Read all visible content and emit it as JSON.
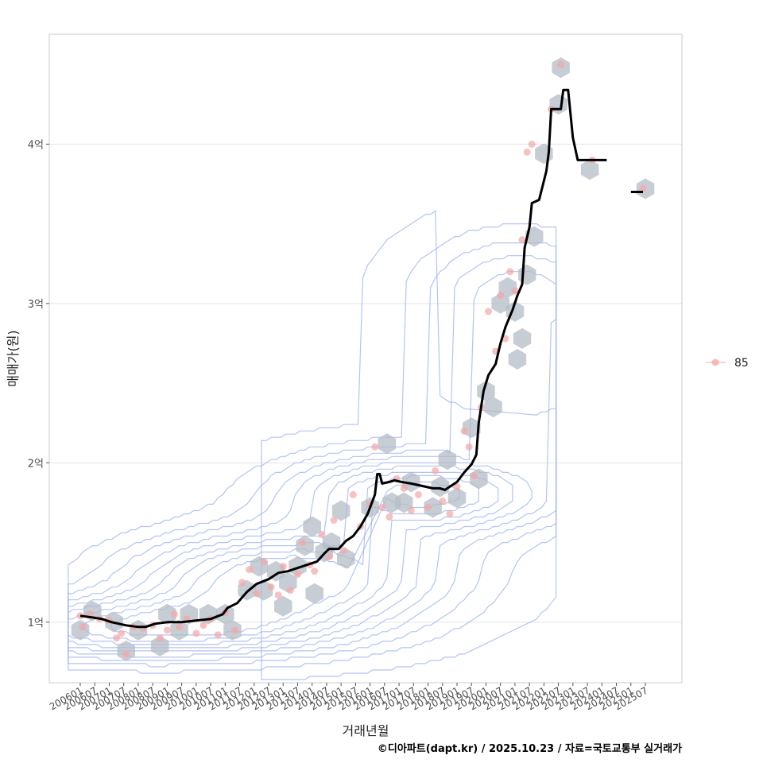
{
  "chart_data": {
    "type": "line",
    "xlabel": "거래년월",
    "ylabel": "매매가(원)",
    "ylim": [
      0.62,
      4.69
    ],
    "y_ticks": [
      {
        "value": 1,
        "label": "1억"
      },
      {
        "value": 2,
        "label": "2억"
      },
      {
        "value": 3,
        "label": "3억"
      },
      {
        "value": 4,
        "label": "4억"
      }
    ],
    "x_range": [
      "2006-01",
      "2025-12"
    ],
    "x_ticks": [
      "200601",
      "200607",
      "200701",
      "200707",
      "200801",
      "200807",
      "200901",
      "200907",
      "201001",
      "201007",
      "201101",
      "201107",
      "201201",
      "201207",
      "201301",
      "201307",
      "201401",
      "201407",
      "201501",
      "201507",
      "201601",
      "201607",
      "201701",
      "201707",
      "201801",
      "201807",
      "201901",
      "201907",
      "202001",
      "202007",
      "202101",
      "202107",
      "202201",
      "202207",
      "202301",
      "202307",
      "202401",
      "202407",
      "202501",
      "202507"
    ],
    "legend": [
      {
        "label": "85",
        "color": "#f4a7a7"
      }
    ],
    "caption": "©디아파트(dapt.kr) / 2025.10.23 / 자료=국토교통부 실거래가",
    "series": [
      {
        "name": "moving-average",
        "color": "#000000",
        "segments": [
          [
            [
              "2006-01",
              1.04
            ],
            [
              "2006-06",
              1.03
            ],
            [
              "2006-10",
              1.02
            ],
            [
              "2007-02",
              1.0
            ],
            [
              "2007-08",
              0.98
            ],
            [
              "2008-01",
              0.97
            ],
            [
              "2008-04",
              0.97
            ],
            [
              "2008-08",
              0.99
            ],
            [
              "2009-01",
              1.0
            ],
            [
              "2009-07",
              1.0
            ],
            [
              "2010-01",
              1.01
            ],
            [
              "2010-07",
              1.02
            ],
            [
              "2010-12",
              1.05
            ],
            [
              "2011-02",
              1.09
            ],
            [
              "2011-06",
              1.12
            ],
            [
              "2011-10",
              1.19
            ],
            [
              "2012-02",
              1.24
            ],
            [
              "2012-07",
              1.27
            ],
            [
              "2012-11",
              1.31
            ],
            [
              "2013-03",
              1.32
            ],
            [
              "2013-07",
              1.34
            ],
            [
              "2013-11",
              1.36
            ],
            [
              "2014-03",
              1.38
            ],
            [
              "2014-06",
              1.43
            ],
            [
              "2014-08",
              1.46
            ],
            [
              "2014-12",
              1.46
            ],
            [
              "2015-03",
              1.51
            ],
            [
              "2015-06",
              1.54
            ],
            [
              "2015-09",
              1.6
            ],
            [
              "2015-12",
              1.68
            ],
            [
              "2016-02",
              1.76
            ],
            [
              "2016-03",
              1.8
            ],
            [
              "2016-04",
              1.93
            ],
            [
              "2016-05",
              1.93
            ],
            [
              "2016-06",
              1.87
            ],
            [
              "2016-09",
              1.88
            ],
            [
              "2016-11",
              1.89
            ],
            [
              "2017-02",
              1.88
            ],
            [
              "2017-06",
              1.87
            ],
            [
              "2017-09",
              1.86
            ],
            [
              "2017-12",
              1.85
            ],
            [
              "2018-03",
              1.84
            ],
            [
              "2018-06",
              1.84
            ],
            [
              "2018-08",
              1.83
            ],
            [
              "2018-10",
              1.85
            ],
            [
              "2019-01",
              1.88
            ],
            [
              "2019-04",
              1.94
            ],
            [
              "2019-07",
              1.99
            ],
            [
              "2019-09",
              2.05
            ],
            [
              "2019-10",
              2.25
            ],
            [
              "2019-12",
              2.45
            ],
            [
              "2020-02",
              2.55
            ],
            [
              "2020-05",
              2.62
            ],
            [
              "2020-07",
              2.75
            ],
            [
              "2020-09",
              2.85
            ],
            [
              "2020-12",
              2.96
            ],
            [
              "2021-02",
              3.05
            ],
            [
              "2021-04",
              3.12
            ],
            [
              "2021-05",
              3.35
            ],
            [
              "2021-07",
              3.48
            ],
            [
              "2021-08",
              3.63
            ],
            [
              "2021-11",
              3.65
            ],
            [
              "2022-02",
              3.83
            ],
            [
              "2022-03",
              3.95
            ],
            [
              "2022-04",
              4.22
            ],
            [
              "2022-08",
              4.22
            ],
            [
              "2022-09",
              4.34
            ],
            [
              "2022-11",
              4.34
            ],
            [
              "2023-01",
              4.04
            ],
            [
              "2023-03",
              3.9
            ],
            [
              "2024-03",
              3.9
            ]
          ],
          [
            [
              "2025-01",
              3.7
            ],
            [
              "2025-06",
              3.7
            ]
          ]
        ]
      }
    ],
    "points_85": [
      [
        "2006-01",
        1.04
      ],
      [
        "2006-02",
        0.97
      ],
      [
        "2006-05",
        1.05
      ],
      [
        "2006-09",
        1.02
      ],
      [
        "2007-01",
        1.01
      ],
      [
        "2007-04",
        0.9
      ],
      [
        "2007-06",
        0.93
      ],
      [
        "2007-08",
        0.8
      ],
      [
        "2007-11",
        0.97
      ],
      [
        "2008-03",
        0.96
      ],
      [
        "2008-07",
        0.98
      ],
      [
        "2008-10",
        0.9
      ],
      [
        "2009-01",
        0.95
      ],
      [
        "2009-04",
        1.05
      ],
      [
        "2009-06",
        0.97
      ],
      [
        "2009-09",
        1.02
      ],
      [
        "2010-01",
        0.93
      ],
      [
        "2010-04",
        0.98
      ],
      [
        "2010-07",
        1.02
      ],
      [
        "2010-10",
        0.92
      ],
      [
        "2011-01",
        1.06
      ],
      [
        "2011-05",
        0.95
      ],
      [
        "2011-08",
        1.25
      ],
      [
        "2011-11",
        1.33
      ],
      [
        "2012-02",
        1.18
      ],
      [
        "2012-05",
        1.38
      ],
      [
        "2012-08",
        1.22
      ],
      [
        "2012-11",
        1.17
      ],
      [
        "2013-01",
        1.35
      ],
      [
        "2013-04",
        1.2
      ],
      [
        "2013-07",
        1.3
      ],
      [
        "2013-09",
        1.5
      ],
      [
        "2013-12",
        1.36
      ],
      [
        "2014-02",
        1.32
      ],
      [
        "2014-05",
        1.55
      ],
      [
        "2014-08",
        1.41
      ],
      [
        "2014-10",
        1.64
      ],
      [
        "2015-02",
        1.45
      ],
      [
        "2015-06",
        1.8
      ],
      [
        "2015-09",
        1.6
      ],
      [
        "2016-01",
        1.74
      ],
      [
        "2016-03",
        2.1
      ],
      [
        "2016-06",
        1.72
      ],
      [
        "2016-09",
        1.66
      ],
      [
        "2016-12",
        1.9
      ],
      [
        "2017-03",
        1.84
      ],
      [
        "2017-06",
        1.7
      ],
      [
        "2017-09",
        1.8
      ],
      [
        "2018-01",
        1.72
      ],
      [
        "2018-04",
        1.95
      ],
      [
        "2018-07",
        1.76
      ],
      [
        "2018-10",
        1.68
      ],
      [
        "2019-01",
        1.85
      ],
      [
        "2019-04",
        2.2
      ],
      [
        "2019-06",
        2.1
      ],
      [
        "2019-08",
        1.92
      ],
      [
        "2019-11",
        2.35
      ],
      [
        "2020-02",
        2.95
      ],
      [
        "2020-05",
        2.7
      ],
      [
        "2020-07",
        3.05
      ],
      [
        "2020-09",
        2.78
      ],
      [
        "2020-11",
        3.2
      ],
      [
        "2021-01",
        3.08
      ],
      [
        "2021-04",
        3.4
      ],
      [
        "2021-06",
        3.95
      ],
      [
        "2021-08",
        4.0
      ],
      [
        "2022-04",
        4.22
      ],
      [
        "2022-08",
        4.5
      ],
      [
        "2023-09",
        3.9
      ],
      [
        "2025-06",
        3.72
      ]
    ],
    "hex_bins": [
      [
        "2006-01",
        0.95
      ],
      [
        "2006-06",
        1.07
      ],
      [
        "2007-03",
        1.0
      ],
      [
        "2007-08",
        0.82
      ],
      [
        "2008-01",
        0.95
      ],
      [
        "2008-10",
        0.85
      ],
      [
        "2009-01",
        1.05
      ],
      [
        "2009-06",
        0.95
      ],
      [
        "2009-10",
        1.05
      ],
      [
        "2010-06",
        1.05
      ],
      [
        "2011-01",
        1.05
      ],
      [
        "2011-04",
        0.95
      ],
      [
        "2011-10",
        1.2
      ],
      [
        "2012-03",
        1.35
      ],
      [
        "2012-05",
        1.2
      ],
      [
        "2012-10",
        1.32
      ],
      [
        "2013-01",
        1.1
      ],
      [
        "2013-03",
        1.25
      ],
      [
        "2013-07",
        1.35
      ],
      [
        "2013-10",
        1.48
      ],
      [
        "2014-01",
        1.6
      ],
      [
        "2014-02",
        1.18
      ],
      [
        "2014-06",
        1.44
      ],
      [
        "2014-09",
        1.5
      ],
      [
        "2015-01",
        1.7
      ],
      [
        "2015-03",
        1.4
      ],
      [
        "2016-01",
        1.72
      ],
      [
        "2016-08",
        2.12
      ],
      [
        "2016-10",
        1.75
      ],
      [
        "2017-03",
        1.75
      ],
      [
        "2017-06",
        1.88
      ],
      [
        "2018-03",
        1.72
      ],
      [
        "2018-06",
        1.85
      ],
      [
        "2018-09",
        2.02
      ],
      [
        "2019-01",
        1.78
      ],
      [
        "2019-07",
        2.22
      ],
      [
        "2019-10",
        1.9
      ],
      [
        "2020-01",
        2.45
      ],
      [
        "2020-04",
        2.35
      ],
      [
        "2020-07",
        3.0
      ],
      [
        "2020-10",
        3.1
      ],
      [
        "2021-01",
        2.95
      ],
      [
        "2021-02",
        2.65
      ],
      [
        "2021-04",
        2.78
      ],
      [
        "2021-06",
        3.18
      ],
      [
        "2021-09",
        3.42
      ],
      [
        "2022-01",
        3.94
      ],
      [
        "2022-07",
        4.25
      ],
      [
        "2022-08",
        4.48
      ],
      [
        "2023-08",
        3.84
      ],
      [
        "2025-07",
        3.72
      ]
    ],
    "density_contours": 10
  }
}
